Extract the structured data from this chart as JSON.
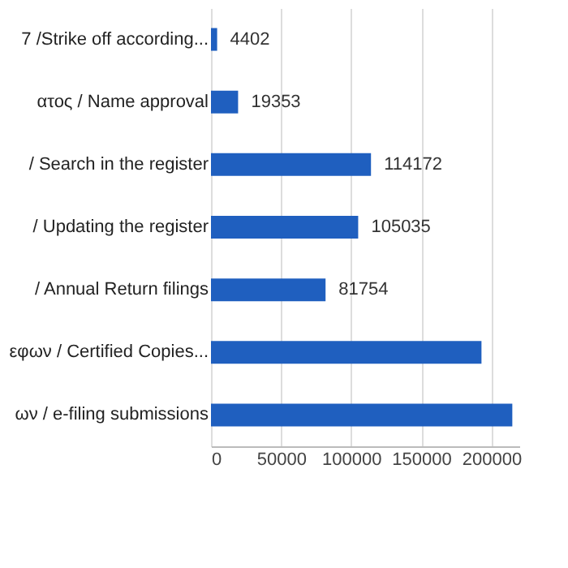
{
  "chart_data": {
    "type": "bar",
    "orientation": "horizontal",
    "categories": [
      "7 /Strike off according...",
      "ατος / Name approval",
      "/ Search in the register",
      "/ Updating the register",
      "/ Annual Return filings",
      "εφων / Certified Copies...",
      "ων / e-filing submissions"
    ],
    "values": [
      4402,
      19353,
      114172,
      105035,
      81754,
      193000,
      215000
    ],
    "value_labels": [
      "4402",
      "19353",
      "114172",
      "105035",
      "81754",
      null,
      null
    ],
    "color": "#1f5fbf",
    "xlim": [
      0,
      220000
    ],
    "xticks": [
      0,
      50000,
      100000,
      150000,
      200000
    ],
    "grid": "x"
  }
}
